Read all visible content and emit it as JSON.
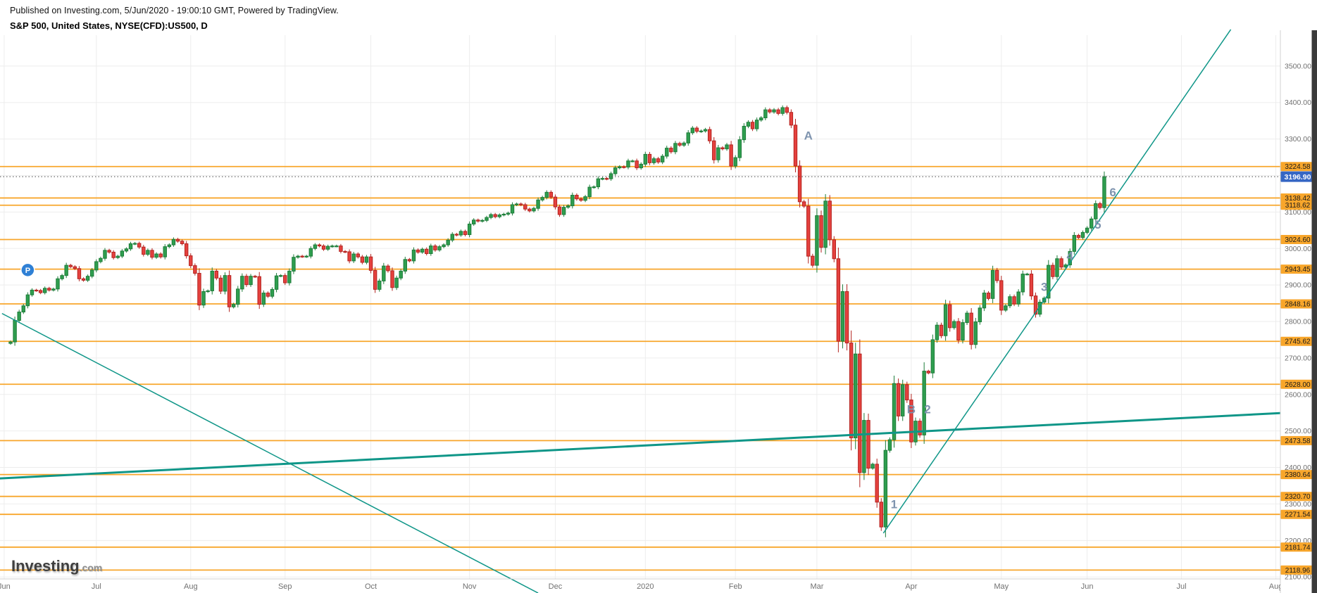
{
  "header": {
    "published_line": "Published on Investing.com, 5/Jun/2020 - 19:00:10 GMT, Powered by TradingView.",
    "symbol_line": "S&P 500, United States, NYSE(CFD):US500, D"
  },
  "watermark": {
    "brand": "Investing",
    "suffix": ".com"
  },
  "price_marker": {
    "label": "P",
    "day": 4,
    "price": 2941
  },
  "colors": {
    "candle_up": "#2f9e4f",
    "candle_up_border": "#1d7c39",
    "candle_down": "#e5413e",
    "candle_down_border": "#b3231f",
    "level_orange": "#f8a62b",
    "trend_teal": "#0f9688",
    "current_price_bg": "#3566c4",
    "wave_label": "#7e93ae",
    "grid": "#ededed",
    "axis_text": "#707070",
    "axis_border": "#d0d0d0",
    "scrollbar": "#3a3a3a"
  },
  "chart_data": {
    "type": "candlestick",
    "symbol": "NYSE(CFD):US500",
    "interval": "D",
    "last_price": 3196.9,
    "y_axis": {
      "price_at_top": 3598,
      "price_at_bottom": 2094.6,
      "tick_min": 2100,
      "tick_max": 3500,
      "tick_step": 100
    },
    "x_axis": {
      "months": [
        {
          "label": "Jun",
          "day_index": -1.5
        },
        {
          "label": "Jul",
          "day_index": 20
        },
        {
          "label": "Aug",
          "day_index": 42
        },
        {
          "label": "Sep",
          "day_index": 64
        },
        {
          "label": "Oct",
          "day_index": 84
        },
        {
          "label": "Nov",
          "day_index": 107
        },
        {
          "label": "Dec",
          "day_index": 127
        },
        {
          "label": "2020",
          "day_index": 148
        },
        {
          "label": "Feb",
          "day_index": 169
        },
        {
          "label": "Mar",
          "day_index": 188
        },
        {
          "label": "Apr",
          "day_index": 210
        },
        {
          "label": "May",
          "day_index": 231
        },
        {
          "label": "Jun",
          "day_index": 251
        },
        {
          "label": "Jul",
          "day_index": 273
        },
        {
          "label": "Aug",
          "day_index": 295
        }
      ]
    },
    "horizontal_levels": [
      3224.58,
      3138.42,
      3118.62,
      3024.6,
      2943.45,
      2848.16,
      2745.62,
      2628.0,
      2473.58,
      2380.64,
      2320.7,
      2271.54,
      2181.74,
      2118.96
    ],
    "trend_lines": [
      {
        "name": "downtrend-line",
        "from": {
          "day": -2,
          "price": 2822
        },
        "to": {
          "day": 123,
          "price": 2056
        },
        "width": 1.5
      },
      {
        "name": "uptrend-line",
        "from": {
          "day": 203.5,
          "price": 2220
        },
        "to": {
          "day": 284.5,
          "price": 3600
        },
        "width": 1.5
      },
      {
        "name": "support-line",
        "from": {
          "day": -2.5,
          "price": 2370
        },
        "to": {
          "day": 296,
          "price": 2549
        },
        "width": 3
      }
    ],
    "wave_labels": [
      {
        "text": "A",
        "day": 186,
        "price": 3310
      },
      {
        "text": "B",
        "day": 210,
        "price": 2560
      },
      {
        "text": "2",
        "day": 213.8,
        "price": 2560
      },
      {
        "text": "1",
        "day": 206,
        "price": 2300
      },
      {
        "text": "3",
        "day": 241,
        "price": 2895
      },
      {
        "text": "4",
        "day": 247,
        "price": 2980
      },
      {
        "text": "5",
        "day": 253.5,
        "price": 3066
      },
      {
        "text": "6",
        "day": 257,
        "price": 3155
      }
    ],
    "first_open": 2740,
    "closes": [
      2744,
      2803,
      2826,
      2843,
      2873,
      2886,
      2885,
      2879,
      2891,
      2886,
      2889,
      2917,
      2926,
      2954,
      2950,
      2945,
      2917,
      2913,
      2924,
      2941,
      2964,
      2973,
      2995,
      2990,
      2975,
      2979,
      2993,
      2999,
      3013,
      3014,
      3004,
      2984,
      2995,
      2976,
      2985,
      2977,
      3005,
      3010,
      3025,
      3020,
      3013,
      2980,
      2953,
      2932,
      2845,
      2882,
      2884,
      2938,
      2919,
      2883,
      2926,
      2840,
      2847,
      2889,
      2924,
      2901,
      2924,
      2923,
      2847,
      2878,
      2869,
      2888,
      2925,
      2926,
      2906,
      2938,
      2976,
      2979,
      2978,
      2979,
      3000,
      3010,
      3007,
      2998,
      3006,
      3007,
      3007,
      2992,
      2991,
      2966,
      2985,
      2977,
      2962,
      2977,
      2940,
      2888,
      2911,
      2952,
      2939,
      2893,
      2919,
      2938,
      2970,
      2966,
      2996,
      2990,
      2998,
      2986,
      3007,
      2996,
      3005,
      3010,
      3023,
      3039,
      3037,
      3047,
      3038,
      3067,
      3078,
      3075,
      3077,
      3085,
      3093,
      3087,
      3092,
      3094,
      3097,
      3120,
      3122,
      3120,
      3108,
      3103,
      3110,
      3133,
      3140,
      3154,
      3141,
      3114,
      3093,
      3113,
      3117,
      3146,
      3136,
      3132,
      3142,
      3168,
      3169,
      3191,
      3192,
      3191,
      3205,
      3221,
      3224,
      3223,
      3240,
      3240,
      3221,
      3231,
      3258,
      3235,
      3246,
      3237,
      3253,
      3275,
      3265,
      3288,
      3283,
      3289,
      3317,
      3330,
      3321,
      3322,
      3326,
      3295,
      3243,
      3276,
      3273,
      3284,
      3226,
      3249,
      3298,
      3335,
      3346,
      3328,
      3352,
      3358,
      3380,
      3374,
      3380,
      3370,
      3386,
      3373,
      3338,
      3226,
      3128,
      3116,
      2979,
      2954,
      3090,
      3003,
      3130,
      3024,
      2972,
      2746,
      2882,
      2741,
      2481,
      2711,
      2386,
      2529,
      2398,
      2409,
      2305,
      2237,
      2447,
      2476,
      2630,
      2541,
      2627,
      2585,
      2470,
      2527,
      2489,
      2664,
      2659,
      2750,
      2790,
      2761,
      2846,
      2783,
      2800,
      2749,
      2797,
      2823,
      2737,
      2799,
      2837,
      2878,
      2863,
      2940,
      2912,
      2831,
      2843,
      2868,
      2848,
      2881,
      2930,
      2930,
      2870,
      2820,
      2853,
      2864,
      2954,
      2923,
      2972,
      2949,
      2955,
      2992,
      3036,
      3030,
      3044,
      3056,
      3081,
      3123,
      3112,
      3196.9
    ]
  }
}
